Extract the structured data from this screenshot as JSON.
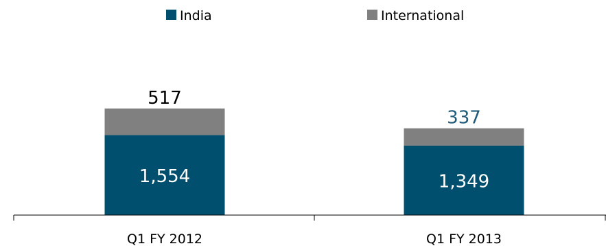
{
  "chart_data": {
    "type": "bar",
    "stacked": true,
    "categories": [
      "Q1 FY 2012",
      "Q1 FY 2013"
    ],
    "series": [
      {
        "name": "India",
        "values": [
          1554,
          1349
        ],
        "color": "#004f6e"
      },
      {
        "name": "International",
        "values": [
          517,
          337
        ],
        "color": "#808080"
      }
    ],
    "data_labels": {
      "India": [
        "1,554",
        "1,349"
      ],
      "International": [
        "517",
        "337"
      ]
    },
    "international_label_colors": [
      "#000000",
      "#1f5a78"
    ],
    "legend_position": "top",
    "grid": false
  }
}
